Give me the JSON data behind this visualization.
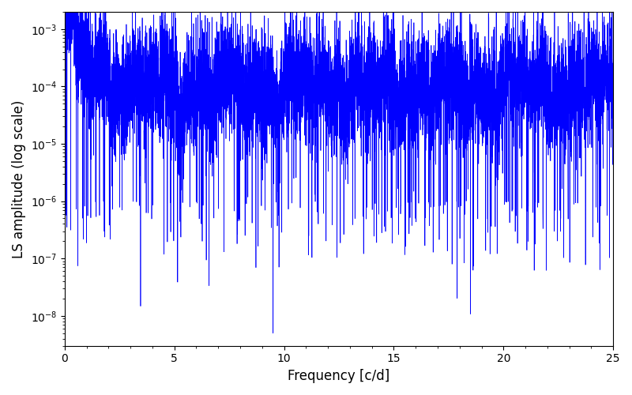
{
  "title": "",
  "xlabel": "Frequency [c/d]",
  "ylabel": "LS amplitude (log scale)",
  "xlim": [
    0,
    25
  ],
  "ylim": [
    3e-09,
    0.002
  ],
  "line_color": "#0000ff",
  "line_width": 0.5,
  "freq_min": 0.0,
  "freq_max": 25.0,
  "n_points": 8000,
  "seed": 7,
  "background_color": "#ffffff",
  "figsize": [
    8.0,
    5.0
  ],
  "dpi": 100
}
